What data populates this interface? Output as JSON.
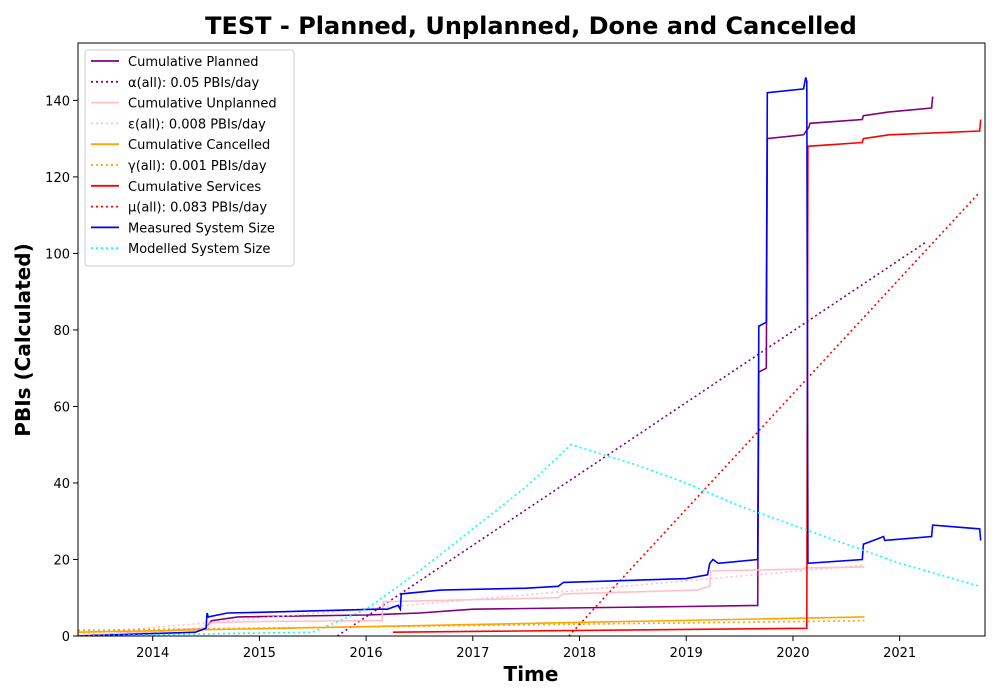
{
  "chart_data": {
    "type": "line",
    "title": "TEST - Planned, Unplanned, Done  and Cancelled",
    "xlabel": "Time",
    "ylabel": "PBIs (Calculated)",
    "xlim": [
      2013.3,
      2021.8
    ],
    "ylim": [
      0,
      155
    ],
    "x_ticks": [
      2014,
      2015,
      2016,
      2017,
      2018,
      2019,
      2020,
      2021
    ],
    "y_ticks": [
      0,
      20,
      40,
      60,
      80,
      100,
      120,
      140
    ],
    "grid": false,
    "legend_position": "top-left",
    "series": [
      {
        "name": "Cumulative Planned",
        "color": "#800080",
        "style": "solid",
        "points": [
          [
            2013.3,
            0
          ],
          [
            2014.5,
            2
          ],
          [
            2014.55,
            4
          ],
          [
            2014.8,
            5
          ],
          [
            2016,
            5.5
          ],
          [
            2016.5,
            6
          ],
          [
            2017,
            7
          ],
          [
            2017.5,
            7.2
          ],
          [
            2019,
            7.7
          ],
          [
            2019.67,
            8
          ],
          [
            2019.68,
            69
          ],
          [
            2019.75,
            70
          ],
          [
            2019.76,
            130
          ],
          [
            2020.1,
            131
          ],
          [
            2020.15,
            133
          ],
          [
            2020.16,
            134
          ],
          [
            2020.65,
            135
          ],
          [
            2020.66,
            136
          ],
          [
            2020.9,
            137
          ],
          [
            2021.3,
            138
          ],
          [
            2021.31,
            141
          ]
        ]
      },
      {
        "name": "α(all): 0.05 PBIs/day",
        "color": "#800080",
        "style": "dotted",
        "points": [
          [
            2015.73,
            0
          ],
          [
            2021.25,
            103
          ]
        ]
      },
      {
        "name": "Cumulative Unplanned",
        "color": "#ffc0cb",
        "style": "solid",
        "points": [
          [
            2013.3,
            0
          ],
          [
            2014.5,
            2
          ],
          [
            2014.55,
            3.5
          ],
          [
            2015,
            3.8
          ],
          [
            2016,
            4
          ],
          [
            2016.15,
            4
          ],
          [
            2016.16,
            9
          ],
          [
            2017,
            9.5
          ],
          [
            2017.8,
            10
          ],
          [
            2017.85,
            11
          ],
          [
            2019.1,
            12
          ],
          [
            2019.22,
            13
          ],
          [
            2019.23,
            17
          ],
          [
            2020.1,
            17.5
          ],
          [
            2020.11,
            17.8
          ],
          [
            2020.67,
            18
          ]
        ]
      },
      {
        "name": "ε(all): 0.008 PBIs/day",
        "color": "#ffc0cb",
        "style": "dotted",
        "points": [
          [
            2013.3,
            0.5
          ],
          [
            2020.67,
            18.5
          ]
        ]
      },
      {
        "name": "Cumulative Cancelled",
        "color": "#ffa500",
        "style": "solid",
        "points": [
          [
            2013.3,
            1
          ],
          [
            2020.67,
            5
          ]
        ]
      },
      {
        "name": "γ(all): 0.001 PBIs/day",
        "color": "#ffa500",
        "style": "dotted",
        "points": [
          [
            2013.3,
            1.5
          ],
          [
            2020.67,
            4
          ]
        ]
      },
      {
        "name": "Cumulative Services",
        "color": "#ff0000",
        "style": "solid",
        "points": [
          [
            2016.25,
            1
          ],
          [
            2020.13,
            2
          ],
          [
            2020.14,
            128
          ],
          [
            2020.65,
            129
          ],
          [
            2020.66,
            130
          ],
          [
            2020.9,
            131
          ],
          [
            2021.75,
            132
          ],
          [
            2021.76,
            135
          ]
        ]
      },
      {
        "name": "μ(all): 0.083 PBIs/day",
        "color": "#ff0000",
        "style": "dotted",
        "points": [
          [
            2017.9,
            0
          ],
          [
            2021.75,
            116
          ]
        ]
      },
      {
        "name": "Measured System Size",
        "color": "#0000ff",
        "style": "solid",
        "points": [
          [
            2013.3,
            0
          ],
          [
            2014.4,
            1
          ],
          [
            2014.5,
            2
          ],
          [
            2014.51,
            6
          ],
          [
            2014.52,
            5
          ],
          [
            2014.7,
            6
          ],
          [
            2015,
            6.2
          ],
          [
            2016.1,
            7
          ],
          [
            2016.2,
            7
          ],
          [
            2016.3,
            8
          ],
          [
            2016.32,
            7
          ],
          [
            2016.33,
            11
          ],
          [
            2016.7,
            12
          ],
          [
            2017.5,
            12.5
          ],
          [
            2017.8,
            13
          ],
          [
            2017.85,
            14
          ],
          [
            2019,
            15
          ],
          [
            2019.2,
            16
          ],
          [
            2019.22,
            19
          ],
          [
            2019.25,
            20
          ],
          [
            2019.3,
            19
          ],
          [
            2019.67,
            20
          ],
          [
            2019.68,
            81
          ],
          [
            2019.75,
            82
          ],
          [
            2019.76,
            142
          ],
          [
            2020.1,
            143
          ],
          [
            2020.12,
            146
          ],
          [
            2020.13,
            145
          ],
          [
            2020.14,
            19
          ],
          [
            2020.65,
            20
          ],
          [
            2020.66,
            24
          ],
          [
            2020.85,
            26
          ],
          [
            2020.86,
            25
          ],
          [
            2021.3,
            26
          ],
          [
            2021.31,
            29
          ],
          [
            2021.75,
            28
          ],
          [
            2021.76,
            25
          ]
        ]
      },
      {
        "name": "Modelled System Size",
        "color": "#00ffff",
        "style": "dotted",
        "points": [
          [
            2013.3,
            0
          ],
          [
            2015.5,
            1
          ],
          [
            2016,
            7
          ],
          [
            2016.5,
            17
          ],
          [
            2017,
            28
          ],
          [
            2017.5,
            39
          ],
          [
            2017.92,
            50
          ],
          [
            2018.5,
            45
          ],
          [
            2019,
            40
          ],
          [
            2019.5,
            34
          ],
          [
            2020,
            29
          ],
          [
            2020.5,
            24
          ],
          [
            2021,
            19
          ],
          [
            2021.5,
            15
          ],
          [
            2021.75,
            13
          ]
        ]
      }
    ]
  }
}
